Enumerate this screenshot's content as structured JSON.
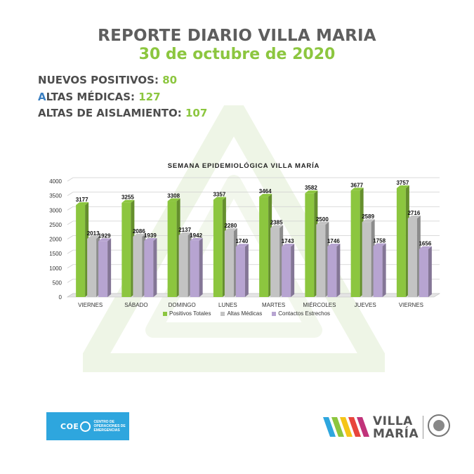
{
  "header": {
    "title": "REPORTE DIARIO VILLA MARIA",
    "date": "30 de octubre de 2020"
  },
  "stats": [
    {
      "label_first": "N",
      "label_rest": "UEVOS POSITIVOS: ",
      "value": "80"
    },
    {
      "label_first": "A",
      "label_rest": "LTAS MÉDICAS: ",
      "value": "127"
    },
    {
      "label_first": "A",
      "label_rest": "LTAS DE AISLAMIENTO: ",
      "value": "107"
    }
  ],
  "colors": {
    "positivos": "#8cc63f",
    "altas": "#c3c3c3",
    "contactos": "#b7a4d1",
    "title_gray": "#5e5e5e",
    "accent_green": "#8cc63f",
    "accent_blue": "#3a7fc1",
    "coe_blue": "#2ea6de"
  },
  "chart_data": {
    "type": "bar",
    "title": "SEMANA EPIDEMIOLÓGICA VILLA MARÍA",
    "categories": [
      "VIERNES",
      "SÁBADO",
      "DOMINGO",
      "LUNES",
      "MARTES",
      "MIÉRCOLES",
      "JUEVES",
      "VIERNES"
    ],
    "series": [
      {
        "name": "Positivos Totales",
        "values": [
          3177,
          3255,
          3308,
          3357,
          3464,
          3582,
          3677,
          3757
        ]
      },
      {
        "name": "Altas Médicas",
        "values": [
          2013,
          2086,
          2137,
          2280,
          2385,
          2500,
          2589,
          2716
        ]
      },
      {
        "name": "Contactos Estrechos",
        "values": [
          1929,
          1939,
          1942,
          1740,
          1743,
          1746,
          1758,
          1656
        ]
      }
    ],
    "ylim": [
      0,
      4000
    ],
    "yticks": [
      0,
      500,
      1000,
      1500,
      2000,
      2500,
      3000,
      3500,
      4000
    ],
    "grid": true,
    "legend_position": "bottom"
  },
  "logos": {
    "coe_word": "COE",
    "coe_sub": "CENTRO DE OPERACIONES DE EMERGENCIAS",
    "vm_line1": "VILLA",
    "vm_line2": "MARÍA"
  },
  "icons": {
    "watermark": "triangle-watermark-icon",
    "coe": "coe-logo-icon",
    "vm": "villa-maria-logo-icon",
    "seal": "municipal-seal-icon"
  }
}
